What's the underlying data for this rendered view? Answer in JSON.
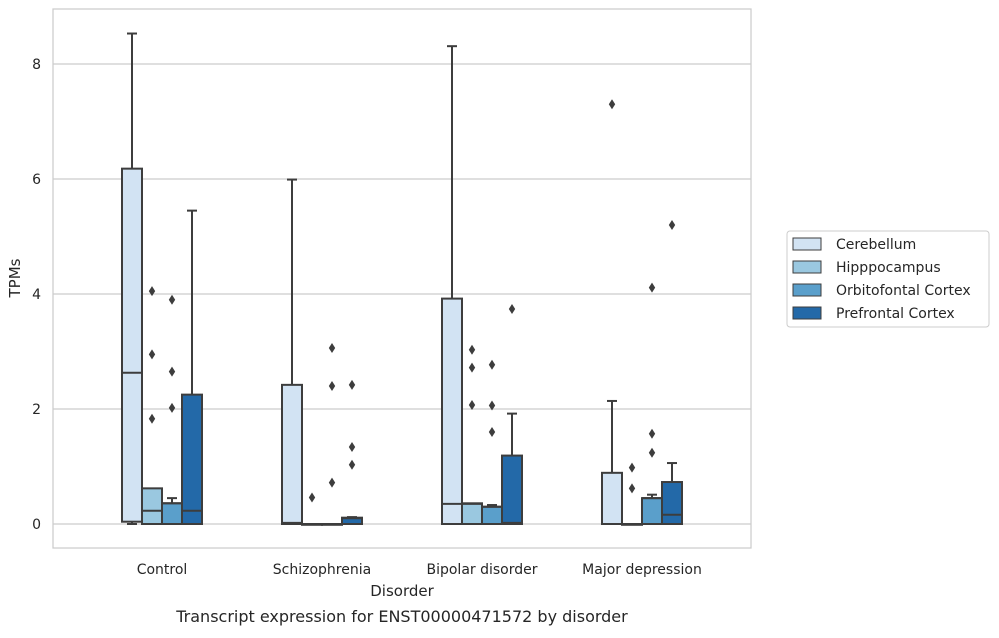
{
  "chart_data": {
    "type": "box",
    "title": "",
    "caption": "Transcript expression for ENST00000471572 by disorder",
    "xlabel": "Disorder",
    "ylabel": "TPMs",
    "ylim": [
      -0.4,
      8.95
    ],
    "yticks": [
      0,
      2,
      4,
      6,
      8
    ],
    "grid": "horizontal",
    "legend_position": "right",
    "categories": [
      "Control",
      "Schizophrenia",
      "Bipolar disorder",
      "Major depression"
    ],
    "series": [
      {
        "name": "Cerebellum",
        "color": "#d2e3f3",
        "boxes": [
          {
            "q1": 0.04,
            "median": 2.63,
            "q3": 6.18,
            "whisker_low": 0.0,
            "whisker_high": 8.53,
            "outliers": []
          },
          {
            "q1": 0.0,
            "median": 0.02,
            "q3": 2.42,
            "whisker_low": 0.0,
            "whisker_high": 5.99,
            "outliers": []
          },
          {
            "q1": 0.0,
            "median": 0.35,
            "q3": 3.92,
            "whisker_low": 0.0,
            "whisker_high": 8.31,
            "outliers": []
          },
          {
            "q1": 0.0,
            "median": 0.0,
            "q3": 0.89,
            "whisker_low": 0.0,
            "whisker_high": 2.14,
            "outliers": [
              7.3
            ]
          }
        ]
      },
      {
        "name": "Hipppocampus",
        "color": "#9ac8e0",
        "boxes": [
          {
            "q1": 0.0,
            "median": 0.23,
            "q3": 0.62,
            "whisker_low": 0.0,
            "whisker_high": 0.62,
            "outliers": [
              4.05,
              2.95,
              1.83
            ]
          },
          {
            "q1": 0.0,
            "median": 0.0,
            "q3": 0.0,
            "whisker_low": 0.0,
            "whisker_high": 0.0,
            "outliers": [
              0.46
            ]
          },
          {
            "q1": 0.0,
            "median": 0.35,
            "q3": 0.36,
            "whisker_low": 0.0,
            "whisker_high": 0.36,
            "outliers": [
              3.03,
              2.72,
              2.07
            ]
          },
          {
            "q1": 0.0,
            "median": 0.0,
            "q3": 0.0,
            "whisker_low": 0.0,
            "whisker_high": 0.0,
            "outliers": [
              0.98,
              0.62
            ]
          }
        ]
      },
      {
        "name": "Orbitofontal Cortex",
        "color": "#5a9fcb",
        "boxes": [
          {
            "q1": 0.0,
            "median": 0.36,
            "q3": 0.36,
            "whisker_low": 0.0,
            "whisker_high": 0.45,
            "outliers": [
              3.9,
              2.65,
              2.02
            ]
          },
          {
            "q1": 0.0,
            "median": 0.0,
            "q3": 0.0,
            "whisker_low": 0.0,
            "whisker_high": 0.0,
            "outliers": [
              3.06,
              2.4,
              0.72
            ]
          },
          {
            "q1": 0.0,
            "median": 0.3,
            "q3": 0.3,
            "whisker_low": 0.0,
            "whisker_high": 0.33,
            "outliers": [
              2.77,
              2.06,
              1.6
            ]
          },
          {
            "q1": 0.0,
            "median": 0.45,
            "q3": 0.45,
            "whisker_low": 0.0,
            "whisker_high": 0.51,
            "outliers": [
              4.11,
              1.57,
              1.24
            ]
          }
        ]
      },
      {
        "name": "Prefrontal Cortex",
        "color": "#2369a8",
        "boxes": [
          {
            "q1": 0.0,
            "median": 0.23,
            "q3": 2.25,
            "whisker_low": 0.0,
            "whisker_high": 5.45,
            "outliers": []
          },
          {
            "q1": 0.0,
            "median": 0.1,
            "q3": 0.11,
            "whisker_low": 0.0,
            "whisker_high": 0.12,
            "outliers": [
              2.42,
              1.34,
              1.03
            ]
          },
          {
            "q1": 0.0,
            "median": 0.02,
            "q3": 1.19,
            "whisker_low": 0.0,
            "whisker_high": 1.92,
            "outliers": [
              3.74
            ]
          },
          {
            "q1": 0.0,
            "median": 0.16,
            "q3": 0.73,
            "whisker_low": 0.0,
            "whisker_high": 1.06,
            "outliers": [
              5.2
            ]
          }
        ]
      }
    ]
  }
}
